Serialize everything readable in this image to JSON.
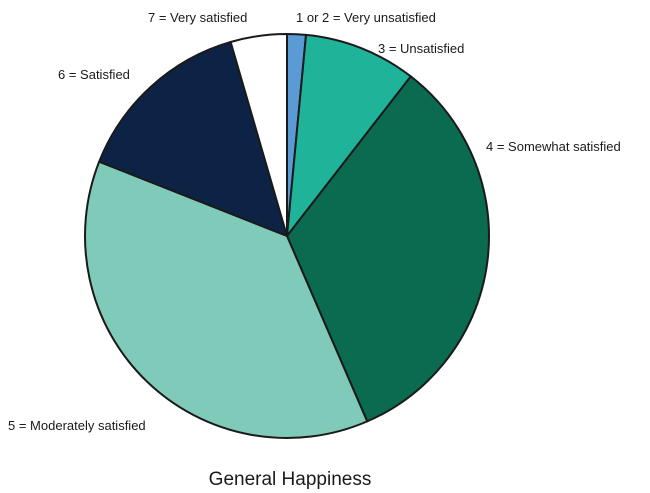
{
  "chart_data": {
    "type": "pie",
    "title": "General Happiness",
    "slices": [
      {
        "label": "1 or 2 = Very unsatisfied",
        "value": 1.5,
        "color": "#5b9bd5"
      },
      {
        "label": "3 = Unsatisfied",
        "value": 9.0,
        "color": "#1fb39a"
      },
      {
        "label": "4 = Somewhat satisfied",
        "value": 33.0,
        "color": "#0a6b50"
      },
      {
        "label": "5 = Moderately satisfied",
        "value": 37.5,
        "color": "#7fcab9"
      },
      {
        "label": "6 = Satisfied",
        "value": 14.5,
        "color": "#0c2346"
      },
      {
        "label": "7 = Very satisfied",
        "value": 4.5,
        "color": "#ffffff"
      }
    ]
  }
}
